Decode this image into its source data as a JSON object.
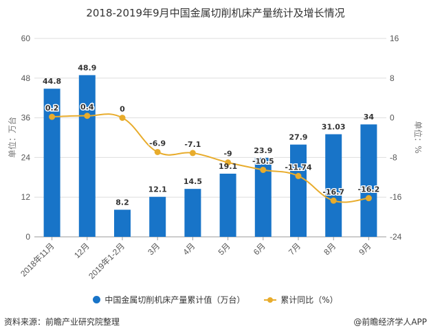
{
  "chart_data": {
    "type": "bar+line",
    "title": "2018-2019年9月中国金属切削机床产量统计及增长情况",
    "categories": [
      "2018年11月",
      "12月",
      "2019年1-2月",
      "3月",
      "4月",
      "5月",
      "6月",
      "7月",
      "8月",
      "9月"
    ],
    "series": [
      {
        "name": "中国金属切削机床产量累计值（万台）",
        "type": "bar",
        "axis": "left",
        "color": "#1874c8",
        "values": [
          44.8,
          48.9,
          8.2,
          12.1,
          14.5,
          19.1,
          23.9,
          27.9,
          31.03,
          34
        ],
        "labels": [
          "44.8",
          "48.9",
          "8.2",
          "12.1",
          "14.5",
          "19.1",
          "23.9",
          "27.9",
          "31.03",
          "34"
        ]
      },
      {
        "name": "累计同比（%）",
        "type": "line",
        "axis": "right",
        "color": "#e8ac2c",
        "values": [
          0.2,
          0.4,
          0,
          -6.9,
          -7.1,
          -9,
          -10.5,
          -11.74,
          -16.7,
          -16.2
        ],
        "labels": [
          "0.2",
          "0.4",
          "0",
          "-6.9",
          "-7.1",
          "-9",
          "-10.5",
          "-11.74",
          "-16.7",
          "-16.2"
        ]
      }
    ],
    "left_axis": {
      "label": "单位：万台",
      "ylim": [
        0,
        60
      ],
      "ticks": [
        "0",
        "12",
        "24",
        "36",
        "48",
        "60"
      ]
    },
    "right_axis": {
      "label": "单位：%",
      "ylim": [
        -24,
        16
      ],
      "ticks": [
        "-24",
        "-16",
        "-8",
        "0",
        "8",
        "16"
      ]
    },
    "grid": true,
    "legend_position": "bottom"
  },
  "footer": {
    "source": "资料来源：前瞻产业研究院整理",
    "credit": "@前瞻经济学人APP"
  }
}
